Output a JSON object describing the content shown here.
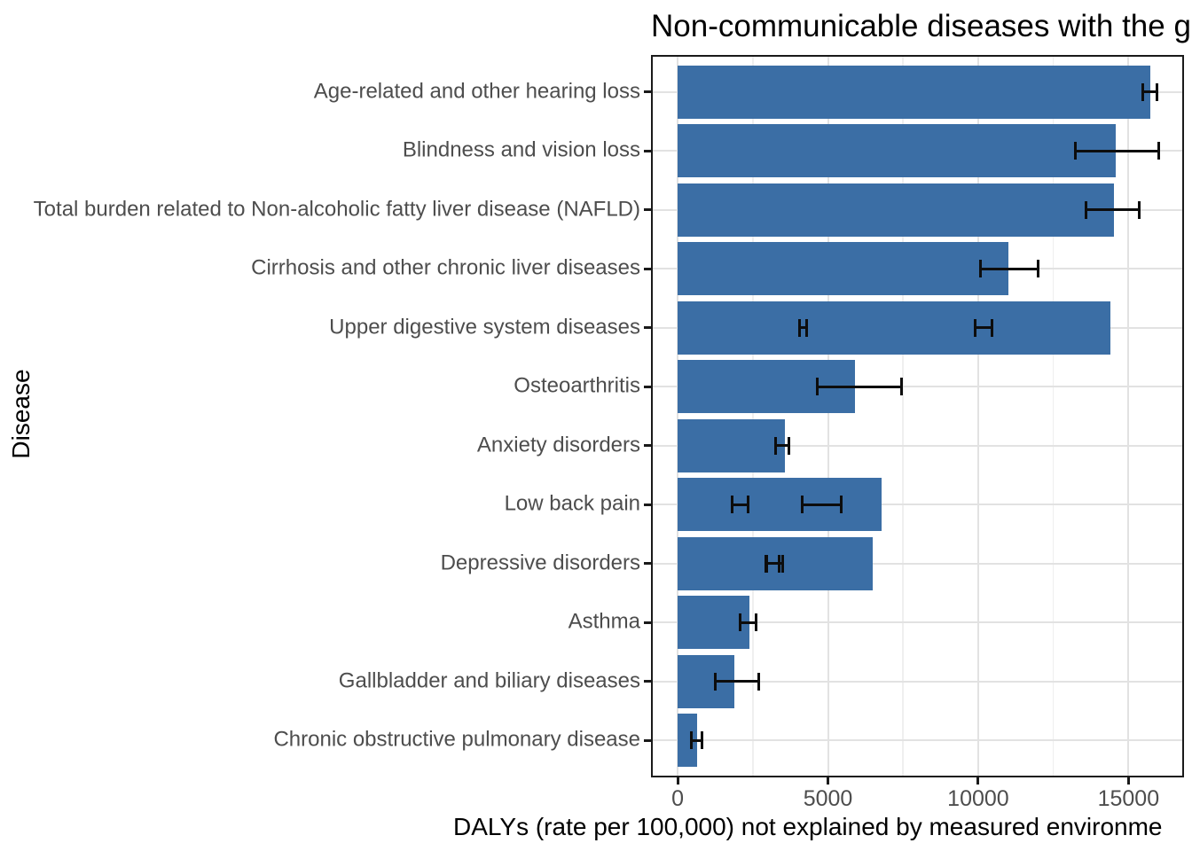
{
  "chart_data": {
    "type": "bar",
    "orientation": "horizontal",
    "title": "Non-communicable diseases with the g",
    "xlabel": "DALYs (rate per 100,000) not explained by measured environme",
    "ylabel": "Disease",
    "x_ticks": [
      0,
      5000,
      10000,
      15000
    ],
    "x_tick_labels": [
      "0",
      "5000",
      "10000",
      "15000"
    ],
    "x_minor_gridlines": [
      2500,
      7500,
      12500
    ],
    "xlim": [
      -830,
      16790
    ],
    "grid": true,
    "legend": "none",
    "bar_color": "#3b6ea5",
    "error_bar_color": "#0d0d0d",
    "axis_text_color": "#4d4d4d",
    "panel_border_color": "#1a1a1a",
    "categories": [
      "Age-related and other hearing loss",
      "Blindness and vision loss",
      "Total burden related to Non-alcoholic fatty liver disease (NAFLD)",
      "Cirrhosis and other chronic liver diseases",
      "Upper digestive system diseases",
      "Osteoarthritis",
      "Anxiety disorders",
      "Low back pain",
      "Depressive disorders",
      "Asthma",
      "Gallbladder and biliary diseases",
      "Chronic obstructive pulmonary disease"
    ],
    "values": [
      15740,
      14590,
      14530,
      11020,
      14410,
      5910,
      3570,
      6780,
      6500,
      2380,
      1890,
      640
    ],
    "error_bars": [
      [
        [
          15470,
          15950
        ]
      ],
      [
        [
          13240,
          16000
        ]
      ],
      [
        [
          13600,
          15350
        ]
      ],
      [
        [
          10070,
          11980
        ]
      ],
      [
        [
          4060,
          4290
        ],
        [
          9910,
          10450
        ]
      ],
      [
        [
          4640,
          7440
        ]
      ],
      [
        [
          3250,
          3690
        ]
      ],
      [
        [
          1810,
          2340
        ],
        [
          4150,
          5440
        ]
      ],
      [
        [
          2940,
          3370
        ],
        [
          2960,
          3490
        ]
      ],
      [
        [
          2080,
          2600
        ]
      ],
      [
        [
          1240,
          2700
        ]
      ],
      [
        [
          465,
          800
        ]
      ]
    ]
  }
}
